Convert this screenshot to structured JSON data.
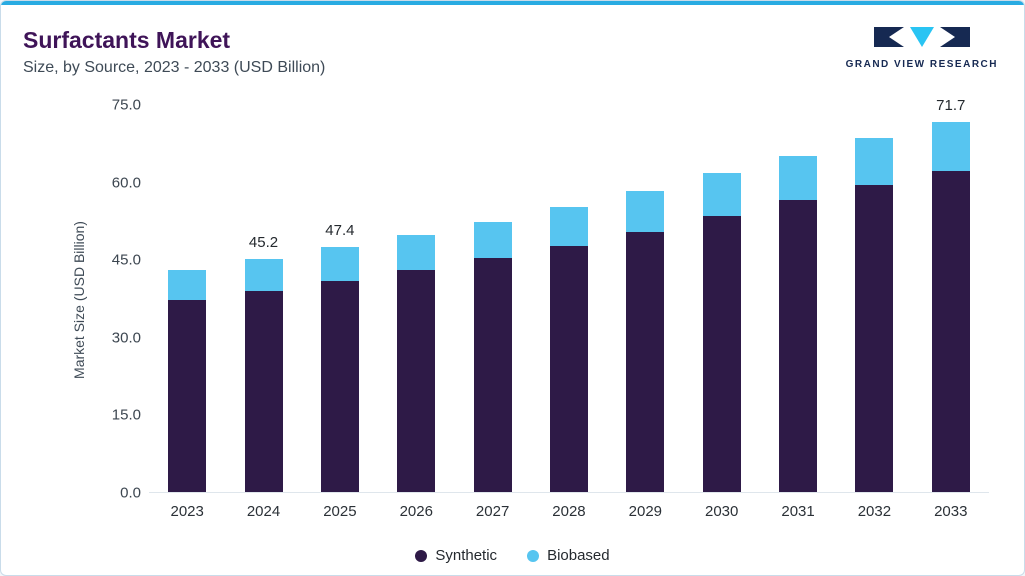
{
  "header": {
    "title": "Surfactants Market",
    "subtitle": "Size, by Source, 2023 - 2033 (USD Billion)"
  },
  "logo": {
    "text": "GRAND VIEW RESEARCH",
    "navy": "#162952",
    "cyan": "#29c4f3"
  },
  "chart_data": {
    "type": "bar",
    "stacked": true,
    "title": "Surfactants Market",
    "subtitle": "Size, by Source, 2023 - 2033 (USD Billion)",
    "ylabel": "Market Size (USD Billion)",
    "xlabel": "",
    "ylim": [
      0,
      75
    ],
    "ytick_labels": [
      "0.0",
      "15.0",
      "30.0",
      "45.0",
      "60.0",
      "75.0"
    ],
    "grid": false,
    "legend_position": "bottom",
    "categories": [
      "2023",
      "2024",
      "2025",
      "2026",
      "2027",
      "2028",
      "2029",
      "2030",
      "2031",
      "2032",
      "2033"
    ],
    "series": [
      {
        "name": "Synthetic",
        "color": "#2e1a47",
        "values": [
          37.3,
          39.0,
          40.9,
          43.1,
          45.4,
          47.7,
          50.4,
          53.5,
          56.6,
          59.5,
          62.3
        ]
      },
      {
        "name": "Biobased",
        "color": "#57c5f0",
        "values": [
          5.8,
          6.2,
          6.5,
          6.7,
          7.0,
          7.5,
          8.0,
          8.3,
          8.6,
          9.2,
          9.4
        ]
      }
    ],
    "totals": [
      43.1,
      45.2,
      47.4,
      49.8,
      52.4,
      55.2,
      58.4,
      61.8,
      65.2,
      68.7,
      71.7
    ],
    "value_labels": {
      "2024": "45.2",
      "2025": "47.4",
      "2033": "71.7"
    },
    "accent_color": "#29abe2"
  }
}
